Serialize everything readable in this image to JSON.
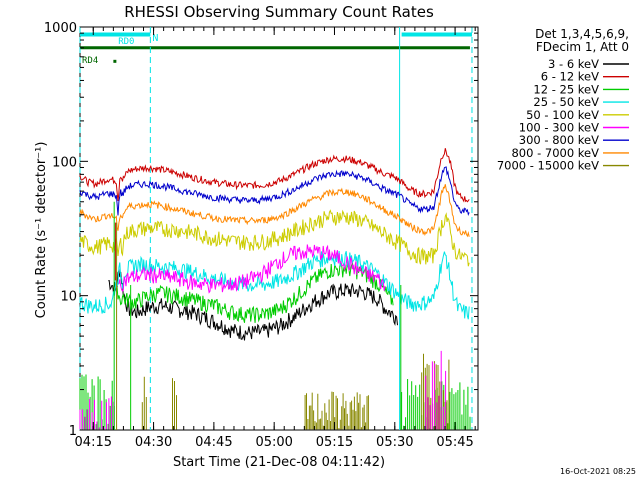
{
  "chart_data": {
    "type": "line",
    "title": "RHESSI Observing Summary Count Rates",
    "xlabel": "Start Time (21-Dec-08 04:11:42)",
    "ylabel": "Count Rate (s⁻¹ detector⁻¹)",
    "x_unit": "minutes after 04:11:42",
    "xlim": [
      0,
      99
    ],
    "ylim": [
      1,
      1000
    ],
    "yscale": "log",
    "x_ticks": [
      {
        "label": "04:15",
        "value": 3.3
      },
      {
        "label": "04:30",
        "value": 18.3
      },
      {
        "label": "04:45",
        "value": 33.3
      },
      {
        "label": "05:00",
        "value": 48.3
      },
      {
        "label": "05:15",
        "value": 63.3
      },
      {
        "label": "05:30",
        "value": 78.3
      },
      {
        "label": "05:45",
        "value": 93.3
      }
    ],
    "y_ticks": [
      {
        "label": "1",
        "value": 1
      },
      {
        "label": "10",
        "value": 10
      },
      {
        "label": "100",
        "value": 100
      },
      {
        "label": "1000",
        "value": 1000
      }
    ],
    "legend_header": [
      "Det 1,3,4,5,6,9,",
      "FDecim 1, Att 0"
    ],
    "legend_placement": "right",
    "series": [
      {
        "name": "3 - 6 keV",
        "color": "#000000",
        "x": [
          7,
          8,
          9,
          9.5,
          10,
          10.5,
          11,
          12,
          14,
          17,
          20,
          24,
          28,
          33,
          38,
          42,
          46,
          50,
          54,
          58,
          62,
          66,
          70,
          74,
          76,
          78,
          79,
          80,
          82,
          84,
          86,
          88,
          90,
          92,
          94,
          97
        ],
        "y": [
          13,
          12,
          11,
          14,
          16,
          12,
          10,
          8,
          7.5,
          8.2,
          8.5,
          8,
          7.5,
          6.5,
          5.5,
          5.3,
          5.4,
          6,
          7.2,
          9,
          10.5,
          11,
          10.8,
          9.5,
          8,
          7.2,
          7,
          null,
          null,
          null,
          null,
          null,
          null,
          null,
          null,
          null
        ]
      },
      {
        "name": "6 - 12 keV",
        "color": "#cc0000",
        "x": [
          0,
          2,
          4,
          5,
          6,
          7,
          8,
          9,
          9.5,
          10,
          10.5,
          11,
          12,
          14,
          17,
          20,
          24,
          28,
          33,
          38,
          42,
          46,
          50,
          54,
          58,
          62,
          66,
          70,
          74,
          76,
          78,
          80,
          82,
          84,
          86,
          88,
          89,
          90,
          91,
          92,
          93,
          94,
          96,
          97
        ],
        "y": [
          78,
          70,
          68,
          70,
          72,
          74,
          73,
          72,
          50,
          82,
          72,
          76,
          85,
          88,
          90,
          87,
          82,
          76,
          70,
          67,
          66,
          67,
          72,
          82,
          95,
          104,
          105,
          98,
          86,
          80,
          77,
          70,
          62,
          58,
          57,
          60,
          80,
          110,
          120,
          100,
          70,
          56,
          52,
          52
        ]
      },
      {
        "name": "12 - 25 keV",
        "color": "#00cc00",
        "x": [
          0,
          1,
          2,
          3,
          4,
          5,
          6,
          7,
          8,
          9,
          9.5,
          10,
          10.5,
          11,
          12,
          14,
          17,
          20,
          24,
          28,
          33,
          38,
          42,
          46,
          50,
          54,
          58,
          62,
          66,
          70,
          74,
          76,
          78,
          80,
          82,
          84,
          86,
          88,
          89,
          90,
          91,
          92,
          93,
          94,
          96,
          97
        ],
        "y": [
          null,
          null,
          null,
          null,
          null,
          null,
          null,
          null,
          null,
          9.5,
          11,
          9,
          10,
          9.5,
          9.2,
          9,
          10,
          10.5,
          10,
          9.3,
          8.5,
          7.5,
          7.2,
          7.3,
          8,
          10,
          13,
          15.5,
          16,
          15,
          12.5,
          10.5,
          9,
          null,
          null,
          null,
          null,
          null,
          null,
          null,
          null,
          null,
          null,
          null,
          null,
          null
        ]
      },
      {
        "name": "25 - 50 keV",
        "color": "#00e5e5",
        "x": [
          0,
          2,
          4,
          5,
          6,
          7,
          8,
          9,
          9.5,
          10,
          10.5,
          11,
          12,
          14,
          17,
          20,
          24,
          28,
          33,
          38,
          42,
          46,
          50,
          54,
          58,
          62,
          66,
          70,
          74,
          76,
          78,
          80,
          82,
          84,
          86,
          88,
          89,
          90,
          91,
          92,
          93,
          94,
          96,
          97
        ],
        "y": [
          9,
          8.5,
          8.4,
          8.5,
          8.6,
          8.7,
          8.8,
          13,
          14,
          16,
          12,
          15,
          16,
          17,
          17,
          16.5,
          16,
          15,
          13.5,
          12.5,
          12,
          12.2,
          13,
          15,
          18,
          19.5,
          19,
          17.5,
          14.5,
          12.5,
          11,
          9.5,
          8.8,
          8.7,
          9,
          9.5,
          13,
          18,
          20,
          14,
          10,
          8,
          7.5,
          7.5
        ]
      },
      {
        "name": "50 - 100 keV",
        "color": "#cccc00",
        "x": [
          0,
          2,
          4,
          5,
          6,
          7,
          8,
          9,
          9.5,
          10,
          10.5,
          11,
          12,
          14,
          17,
          20,
          24,
          28,
          33,
          38,
          42,
          46,
          50,
          54,
          58,
          62,
          66,
          70,
          74,
          76,
          78,
          80,
          82,
          84,
          86,
          88,
          89,
          90,
          91,
          92,
          93,
          94,
          96,
          97
        ],
        "y": [
          26,
          24,
          23,
          23.5,
          24,
          24.5,
          24,
          23.5,
          20,
          25,
          23,
          27,
          30,
          31,
          32,
          31.5,
          31,
          29.5,
          27,
          25.5,
          25,
          25.5,
          27.5,
          31,
          35,
          38.5,
          39,
          36.5,
          31,
          28.5,
          26,
          24,
          21.5,
          20,
          19.5,
          20,
          26,
          34,
          40,
          30,
          23,
          20,
          19,
          19
        ]
      },
      {
        "name": "100 - 300 keV",
        "color": "#ff00ff",
        "x": [
          0,
          2,
          4,
          5,
          6,
          7,
          8,
          9,
          9.5,
          10,
          10.5,
          11,
          12,
          14,
          17,
          20,
          24,
          28,
          33,
          38,
          42,
          46,
          50,
          54,
          58,
          62,
          66,
          70,
          74,
          76,
          78,
          80,
          82,
          84,
          86,
          88,
          89,
          90,
          91,
          92,
          93,
          94,
          96,
          97
        ],
        "y": [
          null,
          null,
          null,
          null,
          null,
          null,
          null,
          null,
          12,
          11.5,
          12.5,
          13,
          13.5,
          14,
          14.5,
          14,
          13.5,
          12.5,
          12,
          12.2,
          13,
          15,
          18.5,
          21,
          21.5,
          20.5,
          18,
          15,
          13.5,
          11.5,
          null,
          null,
          null,
          null,
          null,
          null,
          null,
          null,
          null,
          null,
          null,
          null,
          null,
          null
        ]
      },
      {
        "name": "300 - 800 keV",
        "color": "#0000cc",
        "x": [
          0,
          2,
          4,
          5,
          6,
          7,
          8,
          9,
          9.5,
          10,
          10.5,
          11,
          12,
          14,
          17,
          20,
          24,
          28,
          33,
          38,
          42,
          46,
          50,
          54,
          58,
          62,
          66,
          70,
          74,
          76,
          78,
          80,
          82,
          84,
          86,
          88,
          89,
          90,
          91,
          92,
          93,
          94,
          96,
          97
        ],
        "y": [
          60,
          56,
          54,
          55,
          57,
          58,
          57,
          56,
          40,
          62,
          55,
          60,
          65,
          67,
          68,
          66,
          62,
          58,
          54,
          52,
          51,
          52,
          56,
          63,
          73,
          80,
          81,
          76,
          66,
          61,
          58,
          54,
          48,
          45,
          44,
          46,
          60,
          80,
          90,
          72,
          52,
          44,
          42,
          42
        ]
      },
      {
        "name": "800 - 7000 keV",
        "color": "#ff8800",
        "x": [
          0,
          2,
          4,
          5,
          6,
          7,
          8,
          9,
          9.5,
          10,
          10.5,
          11,
          12,
          14,
          17,
          20,
          24,
          28,
          33,
          38,
          42,
          46,
          50,
          54,
          58,
          62,
          66,
          70,
          74,
          76,
          78,
          80,
          82,
          84,
          86,
          88,
          89,
          90,
          91,
          92,
          93,
          94,
          96,
          97
        ],
        "y": [
          42,
          39,
          37,
          38,
          39,
          40,
          39,
          38,
          28,
          42,
          38,
          42,
          46,
          47,
          48,
          47,
          44,
          41,
          38,
          36.5,
          36,
          36.5,
          39,
          45,
          52,
          58,
          60,
          55,
          47,
          43,
          40,
          37,
          33,
          31,
          30,
          31,
          42,
          58,
          66,
          50,
          36,
          31,
          29,
          29
        ]
      },
      {
        "name": "7000 - 15000 keV",
        "color": "#888800",
        "x": [],
        "y": []
      }
    ],
    "annotations": [
      {
        "text": "N",
        "color": "#00e5e5"
      },
      {
        "text": "RD0",
        "color": "#00e5e5"
      },
      {
        "text": "RD4",
        "color": "#006600"
      }
    ]
  },
  "footer": {
    "timestamp": "16-Oct-2021 08:25"
  }
}
